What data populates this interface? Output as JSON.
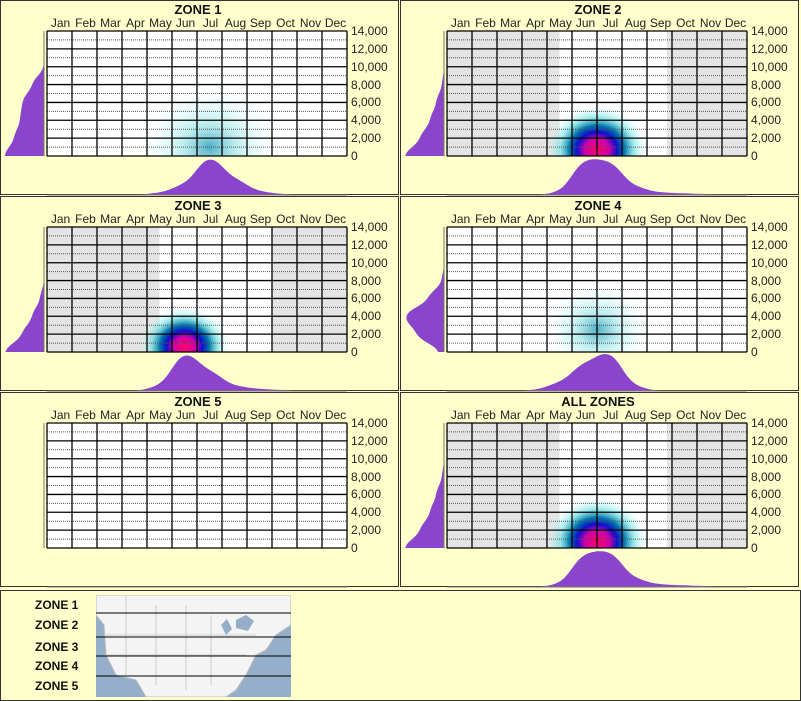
{
  "months": [
    "Jan",
    "Feb",
    "Mar",
    "Apr",
    "May",
    "Jun",
    "Jul",
    "Aug",
    "Sep",
    "Oct",
    "Nov",
    "Dec"
  ],
  "yticks": [
    "14,000",
    "12,000",
    "10,000",
    "8,000",
    "6,000",
    "4,000",
    "2,000",
    "0"
  ],
  "colors": {
    "background": "#ffffcc",
    "histogram": "#8b44cc",
    "shade": "#e4e4e4"
  },
  "chart_data": [
    {
      "type": "heatmap",
      "title": "ZONE 1",
      "ylim": [
        0,
        14000
      ],
      "active_months": null,
      "hot": {
        "month": 6.5,
        "altitude": 1000,
        "intensity": 0.35,
        "spread": 1.3
      },
      "month_density": [
        0,
        0,
        0,
        0,
        0.05,
        0.25,
        1,
        0.4,
        0.08,
        0.02,
        0,
        0
      ],
      "altitude_density": [
        1,
        0.75,
        0.6,
        0.55,
        0.3,
        0,
        0,
        0
      ]
    },
    {
      "type": "heatmap",
      "title": "ZONE 2",
      "ylim": [
        0,
        14000
      ],
      "active_months": [
        4.5,
        8.8
      ],
      "hot": {
        "month": 6.0,
        "altitude": 700,
        "intensity": 1,
        "spread": 1.0
      },
      "month_density": [
        0,
        0,
        0,
        0,
        0.05,
        0.9,
        0.85,
        0.2,
        0.06,
        0.04,
        0.02,
        0
      ],
      "altitude_density": [
        1,
        0.6,
        0.35,
        0.2,
        0.05,
        0,
        0,
        0
      ]
    },
    {
      "type": "heatmap",
      "title": "ZONE 3",
      "ylim": [
        0,
        14000
      ],
      "active_months": [
        4.5,
        9.0
      ],
      "hot": {
        "month": 5.5,
        "altitude": 600,
        "intensity": 1,
        "spread": 0.9
      },
      "month_density": [
        0,
        0,
        0,
        0,
        0.1,
        1,
        0.5,
        0.12,
        0.05,
        0.02,
        0,
        0
      ],
      "altitude_density": [
        1,
        0.55,
        0.3,
        0.1,
        0,
        0,
        0,
        0
      ]
    },
    {
      "type": "heatmap",
      "title": "ZONE 4",
      "ylim": [
        0,
        14000
      ],
      "active_months": null,
      "hot": {
        "month": 6.0,
        "altitude": 2500,
        "intensity": 0.3,
        "spread": 1.0
      },
      "month_density": [
        0,
        0,
        0,
        0.02,
        0.2,
        0.7,
        1,
        0.1,
        0,
        0,
        0,
        0
      ],
      "altitude_density": [
        0.1,
        0.7,
        1,
        0.4,
        0.05,
        0,
        0,
        0
      ]
    },
    {
      "type": "heatmap",
      "title": "ZONE 5",
      "ylim": [
        0,
        14000
      ],
      "active_months": null,
      "hot": null,
      "month_density": [
        0,
        0,
        0,
        0,
        0,
        0,
        0,
        0,
        0,
        0,
        0,
        0
      ],
      "altitude_density": [
        0,
        0,
        0,
        0,
        0,
        0,
        0,
        0
      ]
    },
    {
      "type": "heatmap",
      "title": "ALL ZONES",
      "ylim": [
        0,
        14000
      ],
      "active_months": [
        4.5,
        8.8
      ],
      "hot": {
        "month": 6.0,
        "altitude": 700,
        "intensity": 1,
        "spread": 1.0
      },
      "month_density": [
        0,
        0,
        0,
        0,
        0.05,
        0.85,
        0.9,
        0.2,
        0.06,
        0.04,
        0.02,
        0
      ],
      "altitude_density": [
        1,
        0.6,
        0.35,
        0.2,
        0.05,
        0,
        0,
        0
      ]
    }
  ],
  "legend": {
    "zones": [
      "ZONE 1",
      "ZONE 2",
      "ZONE 3",
      "ZONE 4",
      "ZONE 5"
    ]
  }
}
